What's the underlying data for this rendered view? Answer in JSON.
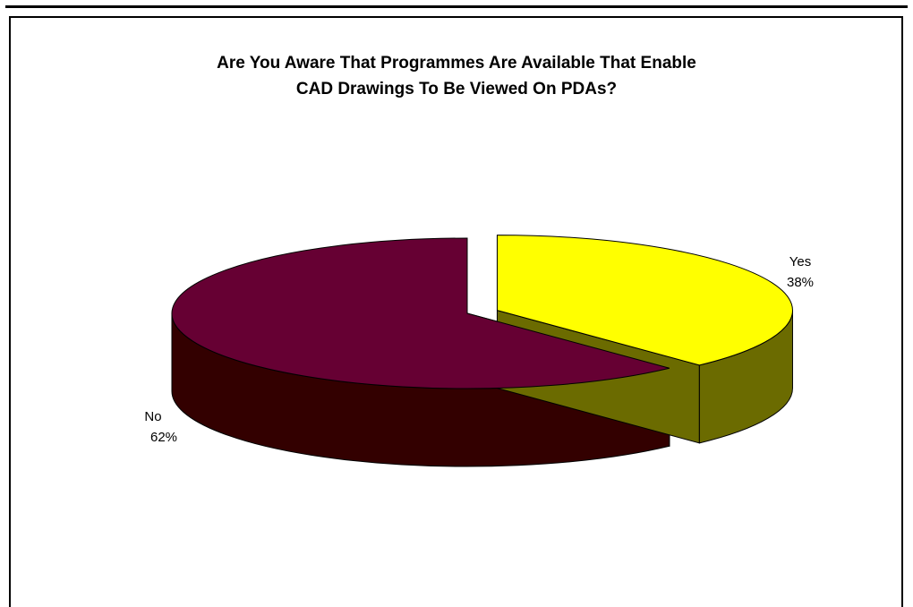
{
  "chart_data": {
    "type": "pie",
    "title_lines": [
      "Are You Aware That Programmes Are Available That Enable",
      "CAD Drawings To Be Viewed On PDAs?"
    ],
    "slices": [
      {
        "label": "Yes",
        "percent_label": "38%",
        "value": 38,
        "color": "#FFFF00",
        "side_color": "#6B6B00"
      },
      {
        "label": "No",
        "percent_label": "62%",
        "value": 62,
        "color": "#660033",
        "side_color": "#330000"
      }
    ],
    "three_d": true,
    "exploded_slice": "Yes"
  }
}
